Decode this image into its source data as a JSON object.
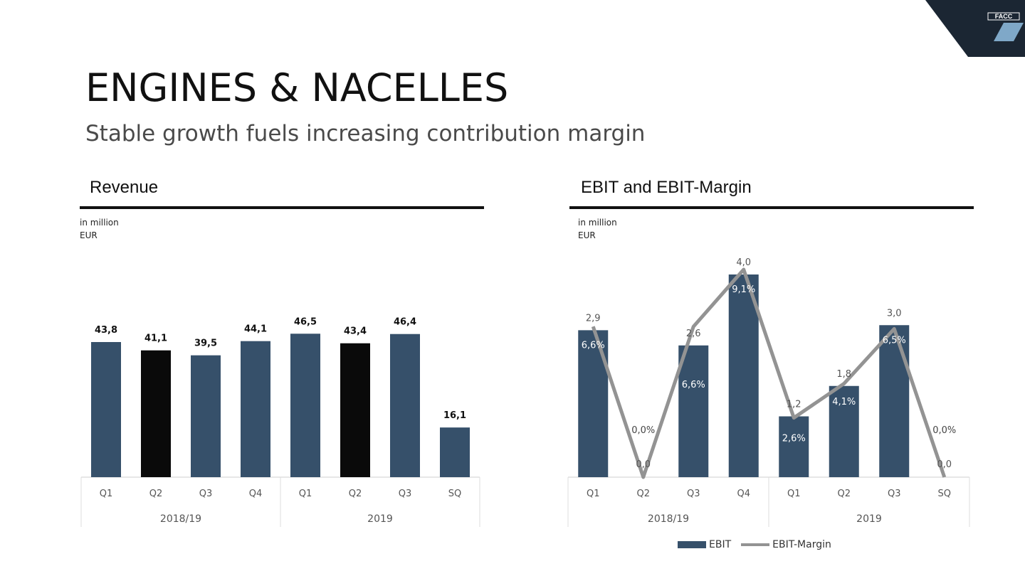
{
  "header": {
    "title": "ENGINES & NACELLES",
    "subtitle": "Stable growth fuels increasing contribution margin",
    "logo_text": "FACC"
  },
  "colors": {
    "bar": "#36506a",
    "bar_highlight": "#0a0a0a",
    "margin_line": "#939393",
    "logo_bg": "#1b2633"
  },
  "panels": {
    "revenue": {
      "title": "Revenue",
      "unit_line1": "in million",
      "unit_line2": "EUR"
    },
    "ebit": {
      "title": "EBIT and EBIT-Margin",
      "unit_line1": "in million",
      "unit_line2": "EUR"
    }
  },
  "chart_data": [
    {
      "type": "bar",
      "title": "Revenue",
      "categories": [
        "Q1",
        "Q2",
        "Q3",
        "Q4",
        "Q1",
        "Q2",
        "Q3",
        "SQ"
      ],
      "groups": [
        {
          "label": "2018/19",
          "count": 4
        },
        {
          "label": "2019",
          "count": 4
        }
      ],
      "values": [
        43.8,
        41.1,
        39.5,
        44.1,
        46.5,
        43.4,
        46.4,
        16.1
      ],
      "value_labels": [
        "43,8",
        "41,1",
        "39,5",
        "44,1",
        "46,5",
        "43,4",
        "46,4",
        "16,1"
      ],
      "highlighted": [
        false,
        true,
        false,
        false,
        false,
        true,
        false,
        false
      ],
      "ylim": [
        0,
        50
      ]
    },
    {
      "type": "bar",
      "title": "EBIT and EBIT-Margin",
      "categories": [
        "Q1",
        "Q2",
        "Q3",
        "Q4",
        "Q1",
        "Q2",
        "Q3",
        "SQ"
      ],
      "groups": [
        {
          "label": "2018/19",
          "count": 4
        },
        {
          "label": "2019",
          "count": 4
        }
      ],
      "series": [
        {
          "name": "EBIT",
          "kind": "bar",
          "values": [
            2.9,
            0.0,
            2.6,
            4.0,
            1.2,
            1.8,
            3.0,
            0.0
          ],
          "labels": [
            "2,9",
            "0,0",
            "2,6",
            "4,0",
            "1,2",
            "1,8",
            "3,0",
            "0,0"
          ]
        },
        {
          "name": "EBIT-Margin",
          "kind": "line",
          "values": [
            6.6,
            0.0,
            6.6,
            9.1,
            2.6,
            4.1,
            6.5,
            0.0
          ],
          "labels": [
            "6,6%",
            "0,0%",
            "6,6%",
            "9,1%",
            "2,6%",
            "4,1%",
            "6,5%",
            "0,0%"
          ]
        }
      ],
      "legend": {
        "placement": "bottom",
        "entries": [
          "EBIT",
          "EBIT-Margin"
        ]
      }
    }
  ]
}
